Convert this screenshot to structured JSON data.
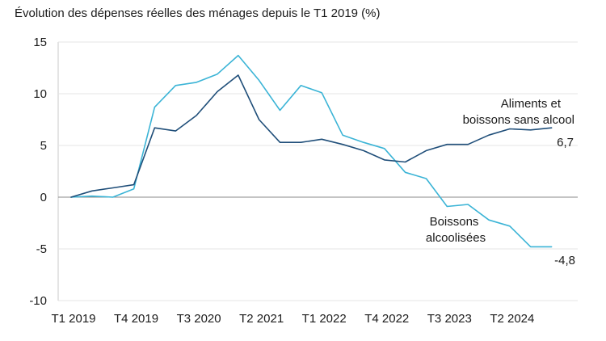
{
  "chart_data": {
    "type": "line",
    "title": "Évolution des dépenses réelles des ménages depuis le T1 2019 (%)",
    "xlabel": "",
    "ylabel": "",
    "ylim": [
      -10,
      15
    ],
    "y_ticks": [
      "15",
      "10",
      "5",
      "0",
      "-5",
      "-10"
    ],
    "x_tick_labels": [
      "T1 2019",
      "T4 2019",
      "T3 2020",
      "T2 2021",
      "T1 2022",
      "T4 2022",
      "T3 2023",
      "T2 2024"
    ],
    "categories": [
      "T1 2019",
      "T2 2019",
      "T3 2019",
      "T4 2019",
      "T1 2020",
      "T2 2020",
      "T3 2020",
      "T4 2020",
      "T1 2021",
      "T2 2021",
      "T3 2021",
      "T4 2021",
      "T1 2022",
      "T2 2022",
      "T3 2022",
      "T4 2022",
      "T1 2023",
      "T2 2023",
      "T3 2023",
      "T4 2023",
      "T1 2024",
      "T2 2024",
      "T3 2024",
      "T4 2024"
    ],
    "series": [
      {
        "name": "Aliments et boissons sans alcool",
        "color": "#1f4e79",
        "values": [
          0,
          0.6,
          0.9,
          1.2,
          6.7,
          6.4,
          7.9,
          10.2,
          11.8,
          7.5,
          5.3,
          5.3,
          5.6,
          5.1,
          4.5,
          3.6,
          3.4,
          4.5,
          5.1,
          5.1,
          6.0,
          6.6,
          6.5,
          6.7
        ],
        "end_label": "6,7"
      },
      {
        "name": "Boissons alcoolisées",
        "color": "#3bb4d6",
        "values": [
          0,
          0.1,
          0,
          0.8,
          8.7,
          10.8,
          11.1,
          11.9,
          13.7,
          11.3,
          8.4,
          10.8,
          10.1,
          6.0,
          5.3,
          4.7,
          2.4,
          1.8,
          -0.9,
          -0.7,
          -2.2,
          -2.8,
          -4.8,
          -4.8
        ],
        "end_label": "-4,8"
      }
    ],
    "annotations": {
      "label_aliments_line1": "Aliments et",
      "label_aliments_line2": "boissons sans alcool",
      "label_boissons_line1": "Boissons",
      "label_boissons_line2": "alcoolisées"
    },
    "grid": "horizontal"
  }
}
